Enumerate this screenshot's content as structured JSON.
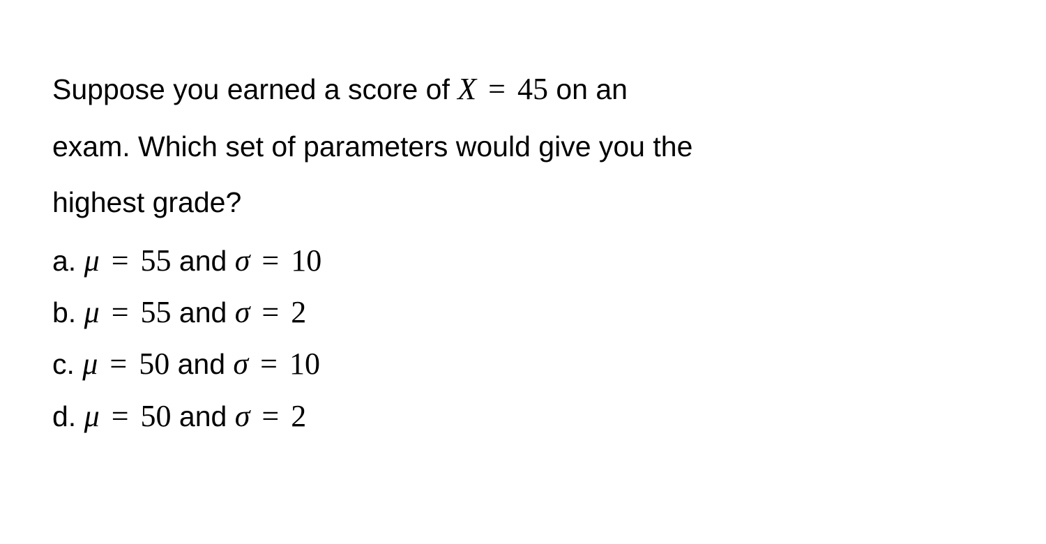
{
  "question": {
    "line1_prefix": "Suppose you earned a score of ",
    "score_var": "X",
    "score_eq": " = ",
    "score_val": "45",
    "line1_suffix": " on an",
    "line2": "exam. Which set of parameters would give you the",
    "line3": "highest grade?"
  },
  "options": [
    {
      "label": "a. ",
      "mu_var": "μ",
      "eq1": " = ",
      "mu_val": "55",
      "and": " and ",
      "sigma_var": "σ",
      "eq2": " = ",
      "sigma_val": "10"
    },
    {
      "label": "b. ",
      "mu_var": "μ",
      "eq1": " = ",
      "mu_val": "55",
      "and": " and ",
      "sigma_var": "σ",
      "eq2": " = ",
      "sigma_val": "2"
    },
    {
      "label": "c. ",
      "mu_var": "μ",
      "eq1": " = ",
      "mu_val": "50",
      "and": " and ",
      "sigma_var": "σ",
      "eq2": " = ",
      "sigma_val": "10"
    },
    {
      "label": "d. ",
      "mu_var": "μ",
      "eq1": " = ",
      "mu_val": "50",
      "and": " and ",
      "sigma_var": "σ",
      "eq2": " = ",
      "sigma_val": "2"
    }
  ],
  "styling": {
    "background_color": "#ffffff",
    "text_color": "#000000",
    "body_font": "Arial, Helvetica, sans-serif",
    "math_font": "Times New Roman, Times, serif",
    "body_fontsize": 41,
    "math_fontsize": 44,
    "line_height": 1.95,
    "option_line_height": 1.6
  }
}
